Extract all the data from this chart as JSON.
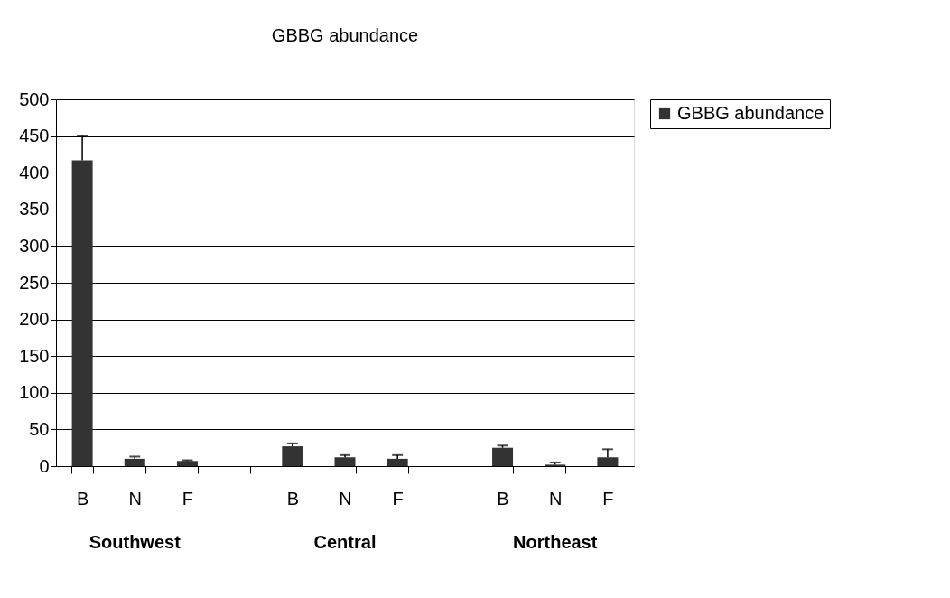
{
  "chart_data": {
    "type": "bar",
    "title": "GBBG abundance",
    "categories": [
      "B",
      "N",
      "F",
      null,
      "B",
      "N",
      "F",
      null,
      "B",
      "N",
      "F"
    ],
    "series": [
      {
        "name": "GBBG abundance",
        "color": "#333333",
        "values": [
          417,
          10,
          7,
          null,
          27,
          12,
          10,
          null,
          25,
          2,
          12
        ],
        "errors": [
          [
            417,
            450
          ],
          [
            10,
            13
          ],
          [
            7,
            8
          ],
          null,
          [
            27,
            31
          ],
          [
            12,
            15
          ],
          [
            10,
            15
          ],
          null,
          [
            25,
            28
          ],
          [
            2,
            5
          ],
          [
            12,
            23
          ]
        ]
      }
    ],
    "annotations": [
      "Southwest",
      "Central",
      "Northeast"
    ],
    "ylim": [
      0,
      500
    ],
    "yticks": [
      0,
      50,
      100,
      150,
      200,
      250,
      300,
      350,
      400,
      450,
      500
    ],
    "grid": "y",
    "legend": "right"
  }
}
